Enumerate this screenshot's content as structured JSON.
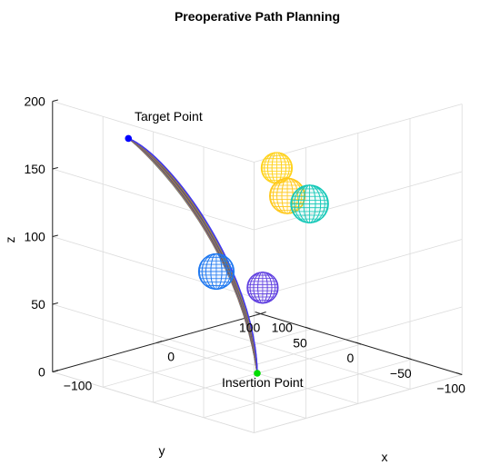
{
  "chart_data": {
    "type": "3d-line",
    "title": "Preoperative Path Planning",
    "xlabel": "x",
    "ylabel": "y",
    "zlabel": "z",
    "xlim": [
      -100,
      100
    ],
    "ylim": [
      -100,
      100
    ],
    "zlim": [
      0,
      200
    ],
    "x_ticks": [
      "−100",
      "0",
      "100"
    ],
    "y_ticks": [
      "100",
      "50",
      "0",
      "−50",
      "−100"
    ],
    "z_ticks": [
      "200",
      "150",
      "100",
      "50",
      "0"
    ],
    "grid": true,
    "annotations": {
      "target_label": "Target Point",
      "insertion_label": "Insertion Point"
    },
    "points": {
      "target": {
        "x": -90,
        "y": 35,
        "z": 185,
        "color": "#0000ff"
      },
      "insertion": {
        "x": 0,
        "y": 0,
        "z": 0,
        "color": "#00dd00"
      }
    },
    "obstacles": [
      {
        "x": -20,
        "y": -40,
        "z": 165,
        "r": 14,
        "color": "#ffd21a"
      },
      {
        "x": -5,
        "y": -35,
        "z": 140,
        "r": 16,
        "color": "#ffc81c"
      },
      {
        "x": 60,
        "y": 10,
        "z": 110,
        "r": 17,
        "color": "#14c8b8"
      },
      {
        "x": -20,
        "y": 20,
        "z": 75,
        "r": 16,
        "color": "#1e78f0"
      },
      {
        "x": 10,
        "y": 5,
        "z": 60,
        "r": 14,
        "color": "#6040e0"
      }
    ],
    "path_colors": [
      "#0072bd",
      "#d95319",
      "#edb120",
      "#7e2f8e",
      "#77ac30",
      "#4dbeee",
      "#a2142f",
      "#3a3aff",
      "#e03030",
      "#20a020"
    ],
    "path_count": 28
  }
}
